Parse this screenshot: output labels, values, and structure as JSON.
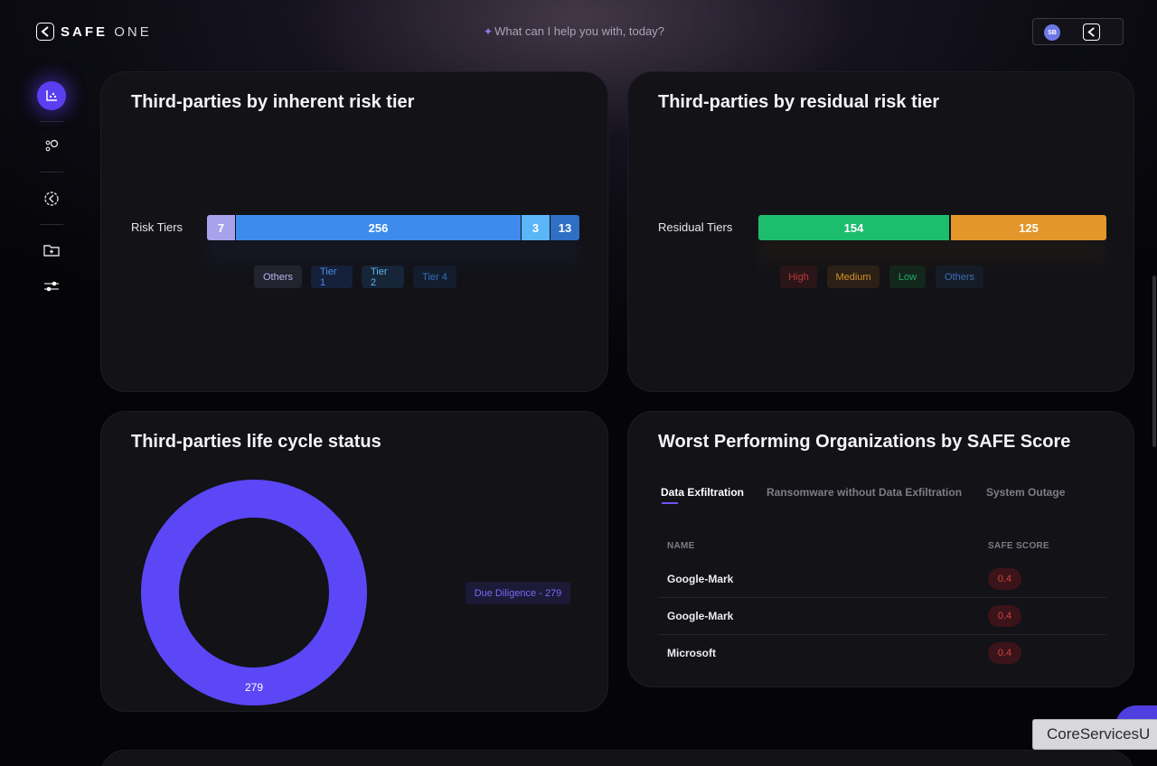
{
  "header": {
    "logo_text_bold": "SAFE",
    "logo_text_light": "ONE",
    "prompt_icon": "sparkle-icon",
    "prompt_text": "What can I help you with, today?",
    "user_initials": "SB"
  },
  "sidebar": {
    "items": [
      {
        "icon": "dashboard-chart-icon",
        "active": true
      },
      {
        "icon": "nodes-icon",
        "active": false
      },
      {
        "icon": "gear-badge-icon",
        "active": false
      },
      {
        "icon": "folder-add-icon",
        "active": false
      },
      {
        "icon": "sliders-icon",
        "active": false
      }
    ]
  },
  "inherent": {
    "title": "Third-parties by inherent risk tier",
    "row_label": "Risk Tiers",
    "segments": [
      {
        "value": "7",
        "color": "#a8a2ec"
      },
      {
        "value": "256",
        "color": "#3d8bed"
      },
      {
        "value": "3",
        "color": "#5bb6f7"
      },
      {
        "value": "13",
        "color": "#2f6fc4"
      }
    ],
    "legend": [
      "Others",
      "Tier 1",
      "Tier 2",
      "Tier 4"
    ]
  },
  "residual": {
    "title": "Third-parties by residual risk tier",
    "row_label": "Residual Tiers",
    "segments": [
      {
        "value": "154",
        "color": "#1dbd6e"
      },
      {
        "value": "125",
        "color": "#e3962a"
      }
    ],
    "legend": [
      "High",
      "Medium",
      "Low",
      "Others"
    ]
  },
  "lifecycle": {
    "title": "Third-parties life cycle status",
    "donut_value": "279",
    "donut_color": "#5b47f5",
    "legend": "Due Diligence - 279"
  },
  "worst": {
    "title": "Worst Performing Organizations by SAFE Score",
    "tabs": [
      "Data Exfiltration",
      "Ransomware without Data Exfiltration",
      "System Outage"
    ],
    "columns": [
      "NAME",
      "SAFE SCORE"
    ],
    "rows": [
      {
        "name": "Google-Mark",
        "score": "0.4"
      },
      {
        "name": "Google-Mark",
        "score": "0.4"
      },
      {
        "name": "Microsoft",
        "score": "0.4"
      }
    ]
  },
  "tooltip": "CoreServicesU"
}
